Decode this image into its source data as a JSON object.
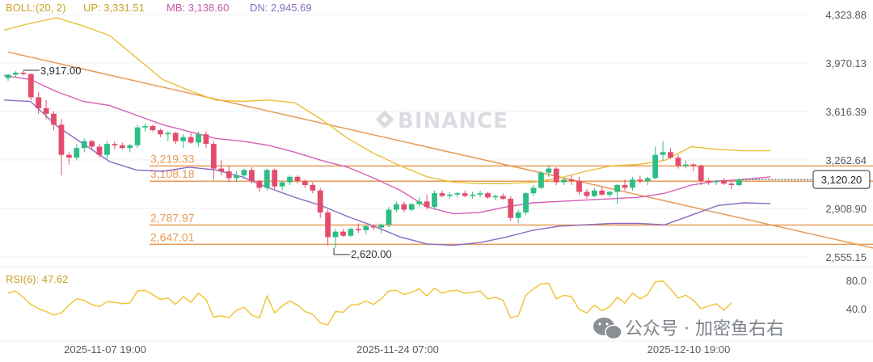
{
  "header": {
    "boll_label": "BOLL:(20, 2)",
    "up": "UP: 3,331.51",
    "mb": "MB: 3,138.60",
    "dn": "DN: 2,945.69"
  },
  "watermark": "BINANCE",
  "footer_watermark": "公众号 · 加密鱼右右",
  "rsi": {
    "label": "RSI(6): 47.62",
    "ticks": [
      "80.0",
      "40.0"
    ]
  },
  "colors": {
    "up_candle": "#2ebd85",
    "down_candle": "#e44c6c",
    "boll_up": "#e8c13a",
    "boll_mb": "#d65fb7",
    "boll_dn": "#8a6bc2",
    "level_line": "#e79a55",
    "trend_line": "#e79a55",
    "rsi_line": "#f0c22e"
  },
  "chart_data": {
    "type": "candlestick",
    "y_ticks": [
      "4,323.88",
      "3,970.13",
      "3,616.39",
      "3,262.64",
      "2,908.90",
      "2,555.15"
    ],
    "y_range": [
      2555.15,
      4323.88
    ],
    "x_ticks": [
      "2025-11-07 19:00",
      "2025-11-24 07:00",
      "2025-12-10 19:00"
    ],
    "current_price": "3,120.20",
    "annotations": {
      "high": "3,917.00",
      "low": "2,620.00"
    },
    "levels": [
      {
        "label": "3,219.33",
        "value": 3219.33
      },
      {
        "label": "3,108.18",
        "value": 3108.18
      },
      {
        "label": "2,787.97",
        "value": 2787.97
      },
      {
        "label": "2,647.01",
        "value": 2647.01
      }
    ],
    "trendline": [
      [
        0,
        4050
      ],
      [
        89,
        2930
      ]
    ],
    "candles": [
      [
        3860,
        3890,
        3840,
        3885
      ],
      [
        3885,
        3910,
        3870,
        3900
      ],
      [
        3900,
        3917,
        3880,
        3890
      ],
      [
        3890,
        3895,
        3700,
        3720
      ],
      [
        3720,
        3760,
        3600,
        3640
      ],
      [
        3640,
        3700,
        3560,
        3600
      ],
      [
        3600,
        3620,
        3480,
        3520
      ],
      [
        3520,
        3560,
        3150,
        3300
      ],
      [
        3300,
        3320,
        3230,
        3280
      ],
      [
        3280,
        3380,
        3260,
        3350
      ],
      [
        3350,
        3420,
        3320,
        3400
      ],
      [
        3400,
        3410,
        3340,
        3360
      ],
      [
        3360,
        3380,
        3280,
        3300
      ],
      [
        3300,
        3400,
        3270,
        3380
      ],
      [
        3380,
        3400,
        3340,
        3370
      ],
      [
        3370,
        3390,
        3340,
        3350
      ],
      [
        3350,
        3380,
        3320,
        3370
      ],
      [
        3370,
        3520,
        3350,
        3500
      ],
      [
        3500,
        3530,
        3470,
        3510
      ],
      [
        3510,
        3520,
        3470,
        3480
      ],
      [
        3480,
        3490,
        3430,
        3450
      ],
      [
        3450,
        3470,
        3400,
        3460
      ],
      [
        3460,
        3470,
        3380,
        3400
      ],
      [
        3400,
        3450,
        3350,
        3430
      ],
      [
        3430,
        3460,
        3380,
        3390
      ],
      [
        3390,
        3470,
        3360,
        3450
      ],
      [
        3450,
        3470,
        3350,
        3380
      ],
      [
        3380,
        3400,
        3120,
        3200
      ],
      [
        3200,
        3260,
        3150,
        3180
      ],
      [
        3180,
        3220,
        3100,
        3130
      ],
      [
        3130,
        3180,
        3100,
        3150
      ],
      [
        3150,
        3200,
        3140,
        3190
      ],
      [
        3190,
        3210,
        3090,
        3110
      ],
      [
        3110,
        3120,
        3030,
        3060
      ],
      [
        3060,
        3200,
        3040,
        3190
      ],
      [
        3190,
        3200,
        3050,
        3070
      ],
      [
        3070,
        3110,
        3040,
        3100
      ],
      [
        3100,
        3150,
        3080,
        3140
      ],
      [
        3140,
        3150,
        3090,
        3110
      ],
      [
        3110,
        3120,
        3060,
        3080
      ],
      [
        3080,
        3100,
        3020,
        3040
      ],
      [
        3040,
        3060,
        2840,
        2880
      ],
      [
        2880,
        2900,
        2640,
        2700
      ],
      [
        2700,
        2760,
        2620,
        2740
      ],
      [
        2740,
        2760,
        2700,
        2710
      ],
      [
        2710,
        2770,
        2700,
        2760
      ],
      [
        2760,
        2800,
        2730,
        2750
      ],
      [
        2750,
        2790,
        2720,
        2780
      ],
      [
        2780,
        2790,
        2750,
        2770
      ],
      [
        2770,
        2800,
        2730,
        2790
      ],
      [
        2790,
        2920,
        2770,
        2900
      ],
      [
        2900,
        2960,
        2880,
        2940
      ],
      [
        2940,
        2960,
        2880,
        2900
      ],
      [
        2900,
        2950,
        2890,
        2940
      ],
      [
        2940,
        2990,
        2920,
        2960
      ],
      [
        2960,
        3010,
        2900,
        2920
      ],
      [
        2920,
        3040,
        2900,
        3020
      ],
      [
        3020,
        3040,
        2990,
        3000
      ],
      [
        3000,
        3030,
        2980,
        3010
      ],
      [
        3010,
        3030,
        2990,
        3020
      ],
      [
        3020,
        3040,
        2990,
        3000
      ],
      [
        3000,
        3030,
        2980,
        3010
      ],
      [
        3010,
        3040,
        2990,
        3020
      ],
      [
        3020,
        3030,
        2980,
        2990
      ],
      [
        2990,
        3010,
        2970,
        3000
      ],
      [
        3000,
        3020,
        2970,
        2980
      ],
      [
        2980,
        3000,
        2820,
        2840
      ],
      [
        2840,
        2900,
        2800,
        2880
      ],
      [
        2880,
        3030,
        2860,
        3020
      ],
      [
        3020,
        3080,
        3000,
        3060
      ],
      [
        3060,
        3180,
        3050,
        3170
      ],
      [
        3170,
        3220,
        3140,
        3200
      ],
      [
        3200,
        3210,
        3080,
        3100
      ],
      [
        3100,
        3130,
        3080,
        3120
      ],
      [
        3120,
        3150,
        3080,
        3110
      ],
      [
        3110,
        3140,
        3010,
        3030
      ],
      [
        3030,
        3050,
        2980,
        3000
      ],
      [
        3000,
        3060,
        2990,
        3040
      ],
      [
        3040,
        3070,
        3000,
        3010
      ],
      [
        3010,
        3040,
        2990,
        3030
      ],
      [
        3030,
        3090,
        2940,
        3080
      ],
      [
        3080,
        3120,
        3040,
        3060
      ],
      [
        3060,
        3140,
        3040,
        3120
      ],
      [
        3120,
        3150,
        3090,
        3110
      ],
      [
        3110,
        3140,
        3080,
        3130
      ],
      [
        3130,
        3360,
        3120,
        3300
      ],
      [
        3300,
        3400,
        3260,
        3320
      ],
      [
        3320,
        3350,
        3270,
        3280
      ],
      [
        3280,
        3300,
        3200,
        3220
      ],
      [
        3220,
        3260,
        3200,
        3230
      ],
      [
        3230,
        3240,
        3180,
        3220
      ],
      [
        3220,
        3230,
        3080,
        3110
      ],
      [
        3110,
        3130,
        3080,
        3100
      ],
      [
        3100,
        3120,
        3080,
        3110
      ],
      [
        3110,
        3130,
        3080,
        3090
      ],
      [
        3090,
        3110,
        3050,
        3080
      ],
      [
        3080,
        3130,
        3070,
        3120
      ]
    ],
    "boll": {
      "up": [
        [
          0,
          4210
        ],
        [
          6,
          4260
        ],
        [
          12,
          4300
        ],
        [
          18,
          4240
        ],
        [
          24,
          4170
        ],
        [
          30,
          4010
        ],
        [
          36,
          3850
        ],
        [
          42,
          3770
        ],
        [
          48,
          3700
        ],
        [
          54,
          3690
        ],
        [
          60,
          3700
        ],
        [
          66,
          3680
        ],
        [
          72,
          3560
        ],
        [
          78,
          3420
        ],
        [
          84,
          3310
        ],
        [
          90,
          3220
        ],
        [
          96,
          3140
        ],
        [
          102,
          3100
        ],
        [
          108,
          3090
        ],
        [
          114,
          3090
        ],
        [
          120,
          3100
        ],
        [
          126,
          3130
        ],
        [
          132,
          3180
        ],
        [
          138,
          3220
        ],
        [
          144,
          3230
        ],
        [
          150,
          3260
        ],
        [
          156,
          3360
        ],
        [
          162,
          3340
        ],
        [
          168,
          3330
        ],
        [
          174,
          3330
        ]
      ],
      "mb": [
        [
          0,
          3880
        ],
        [
          6,
          3850
        ],
        [
          12,
          3760
        ],
        [
          18,
          3690
        ],
        [
          24,
          3660
        ],
        [
          30,
          3590
        ],
        [
          36,
          3520
        ],
        [
          42,
          3470
        ],
        [
          48,
          3420
        ],
        [
          54,
          3400
        ],
        [
          60,
          3370
        ],
        [
          66,
          3320
        ],
        [
          72,
          3260
        ],
        [
          78,
          3210
        ],
        [
          84,
          3130
        ],
        [
          90,
          3040
        ],
        [
          96,
          2920
        ],
        [
          102,
          2870
        ],
        [
          108,
          2880
        ],
        [
          114,
          2920
        ],
        [
          120,
          2950
        ],
        [
          126,
          2960
        ],
        [
          132,
          2970
        ],
        [
          138,
          2980
        ],
        [
          144,
          2990
        ],
        [
          150,
          3020
        ],
        [
          156,
          3080
        ],
        [
          162,
          3110
        ],
        [
          168,
          3120
        ],
        [
          174,
          3140
        ]
      ],
      "dn": [
        [
          0,
          3700
        ],
        [
          6,
          3690
        ],
        [
          12,
          3510
        ],
        [
          18,
          3380
        ],
        [
          24,
          3250
        ],
        [
          30,
          3190
        ],
        [
          36,
          3180
        ],
        [
          42,
          3210
        ],
        [
          48,
          3190
        ],
        [
          54,
          3140
        ],
        [
          60,
          3060
        ],
        [
          66,
          2990
        ],
        [
          72,
          2930
        ],
        [
          78,
          2850
        ],
        [
          84,
          2780
        ],
        [
          90,
          2700
        ],
        [
          96,
          2650
        ],
        [
          102,
          2640
        ],
        [
          108,
          2660
        ],
        [
          114,
          2700
        ],
        [
          120,
          2750
        ],
        [
          126,
          2780
        ],
        [
          132,
          2790
        ],
        [
          138,
          2800
        ],
        [
          144,
          2800
        ],
        [
          150,
          2790
        ],
        [
          156,
          2860
        ],
        [
          162,
          2930
        ],
        [
          168,
          2950
        ],
        [
          174,
          2945
        ]
      ]
    },
    "rsi_series": [
      62,
      65,
      56,
      46,
      40,
      36,
      31,
      34,
      45,
      54,
      52,
      46,
      43,
      50,
      49,
      47,
      48,
      65,
      66,
      60,
      53,
      55,
      46,
      57,
      49,
      62,
      53,
      28,
      30,
      27,
      38,
      42,
      31,
      27,
      58,
      34,
      44,
      51,
      45,
      36,
      32,
      20,
      17,
      36,
      35,
      45,
      46,
      51,
      46,
      54,
      65,
      66,
      60,
      63,
      68,
      58,
      69,
      62,
      65,
      66,
      62,
      63,
      65,
      54,
      56,
      52,
      27,
      30,
      59,
      68,
      75,
      76,
      54,
      59,
      57,
      39,
      34,
      45,
      37,
      43,
      56,
      48,
      62,
      54,
      60,
      78,
      79,
      68,
      55,
      59,
      52,
      40,
      44,
      47,
      38,
      48
    ],
    "rsi_range": [
      0,
      100
    ]
  }
}
